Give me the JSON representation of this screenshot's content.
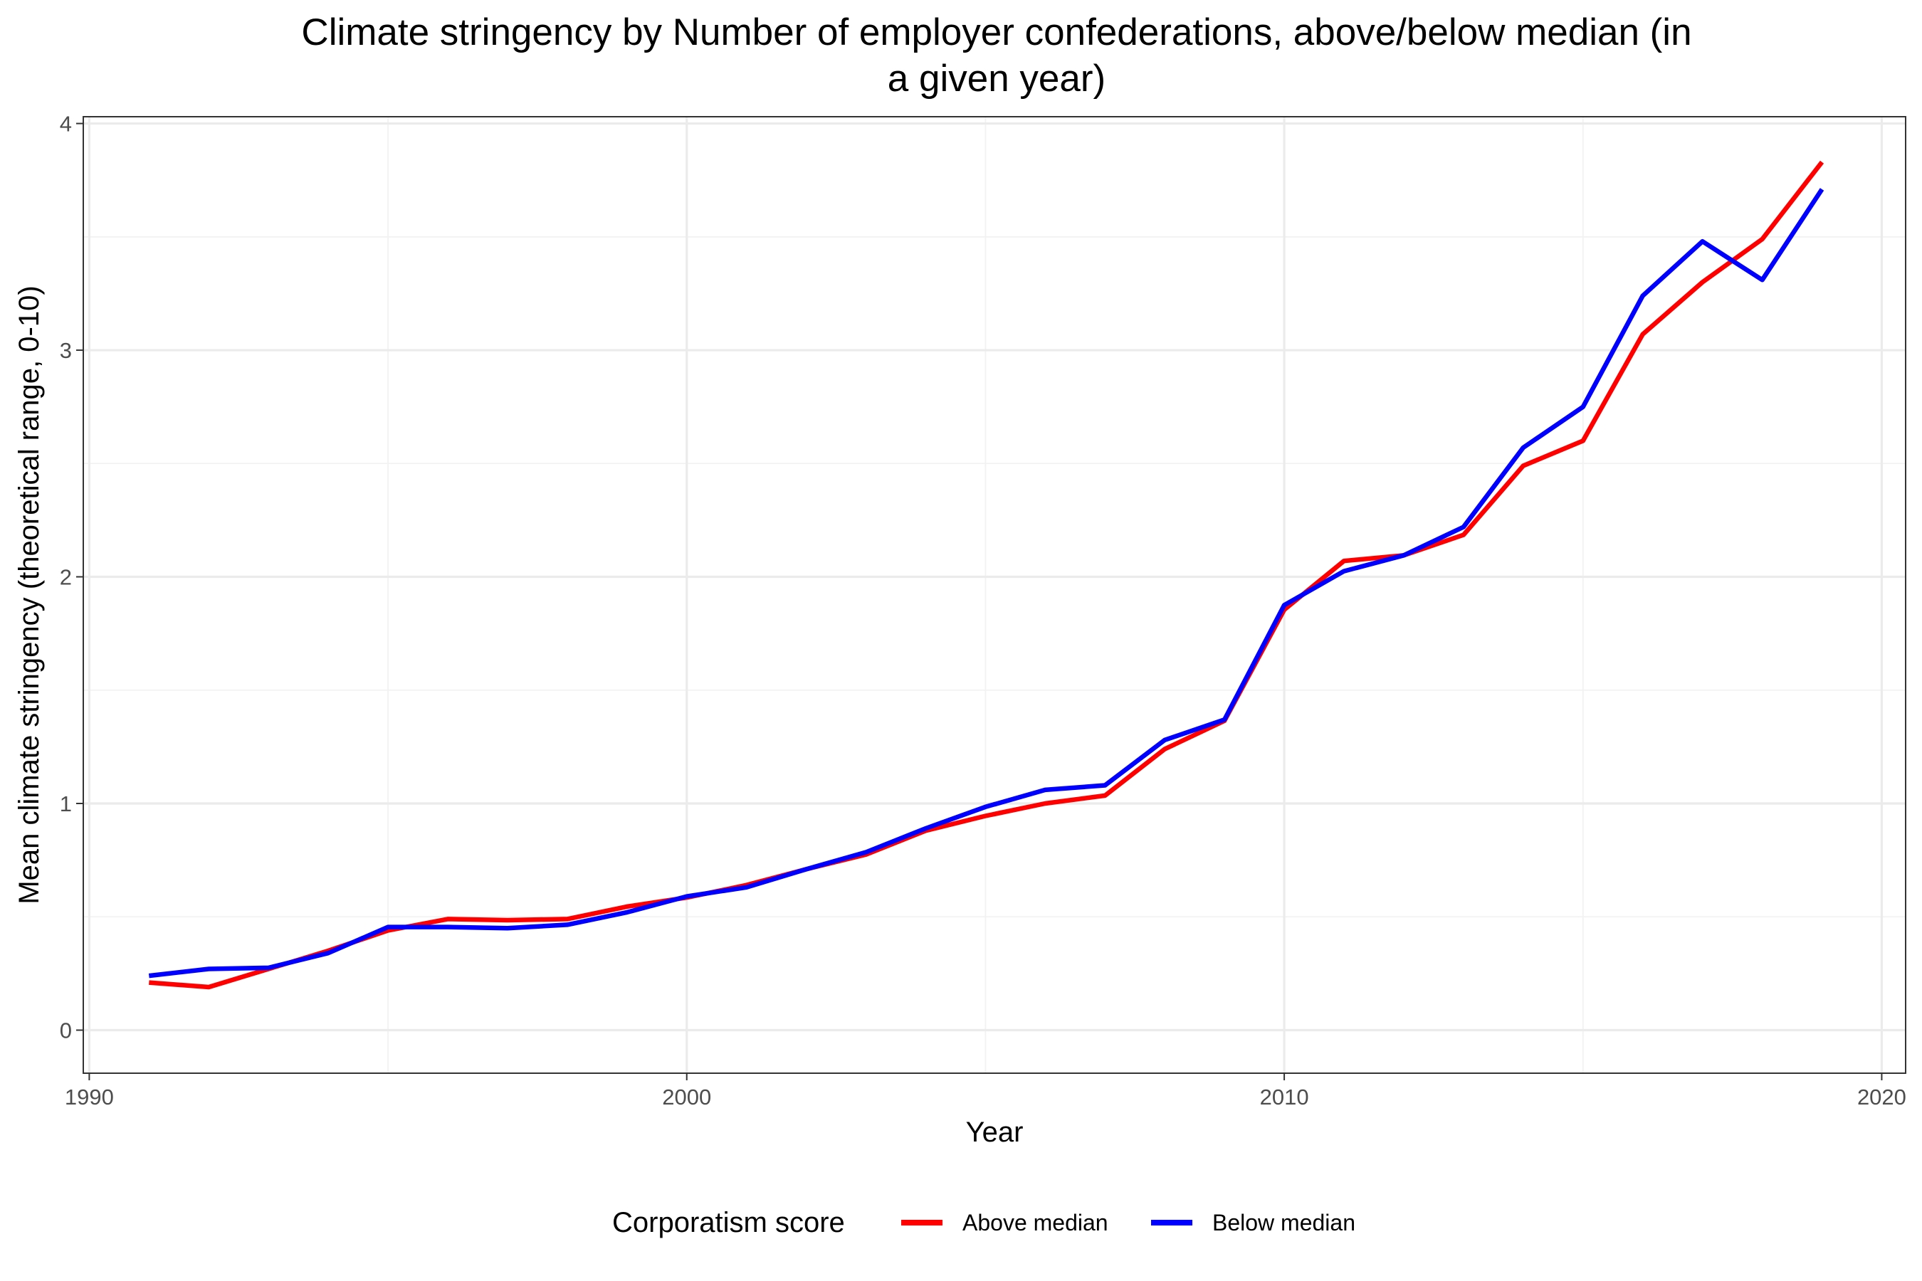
{
  "chart_data": {
    "type": "line",
    "title_lines": [
      "Climate stringency by Number of employer confederations, above/below median (in",
      "a given year)"
    ],
    "xlabel": "Year",
    "ylabel": "Mean climate stringency (theoretical range, 0-10)",
    "xlim": [
      1989.9,
      2020.4
    ],
    "ylim": [
      -0.19,
      4.03
    ],
    "x_ticks": [
      1990,
      2000,
      2010,
      2020
    ],
    "x_tick_labels": [
      "1990",
      "2000",
      "2010",
      "2020"
    ],
    "y_ticks": [
      0,
      1,
      2,
      3,
      4
    ],
    "y_tick_labels": [
      "0",
      "1",
      "2",
      "3",
      "4"
    ],
    "x_minor_ticks": [
      1995,
      2005,
      2015
    ],
    "y_minor_ticks": [
      0.5,
      1.5,
      2.5,
      3.5
    ],
    "grid": true,
    "legend": {
      "title": "Corporatism score",
      "position": "bottom"
    },
    "x": [
      1991,
      1992,
      1993,
      1994,
      1995,
      1996,
      1997,
      1998,
      1999,
      2000,
      2001,
      2002,
      2003,
      2004,
      2005,
      2006,
      2007,
      2008,
      2009,
      2010,
      2011,
      2012,
      2013,
      2014,
      2015,
      2016,
      2017,
      2018,
      2019
    ],
    "series": [
      {
        "name": "Above median",
        "color": "#ff0000",
        "values": [
          0.21,
          0.19,
          0.27,
          0.35,
          0.44,
          0.49,
          0.485,
          0.49,
          0.545,
          0.585,
          0.64,
          0.71,
          0.775,
          0.88,
          0.945,
          1.0,
          1.035,
          1.24,
          1.365,
          1.855,
          2.07,
          2.095,
          2.185,
          2.49,
          2.6,
          3.07,
          3.3,
          3.49,
          3.83
        ]
      },
      {
        "name": "Below median",
        "color": "#0000ff",
        "values": [
          0.24,
          0.27,
          0.275,
          0.34,
          0.455,
          0.455,
          0.45,
          0.465,
          0.52,
          0.59,
          0.63,
          0.71,
          0.785,
          0.89,
          0.985,
          1.06,
          1.08,
          1.28,
          1.37,
          1.875,
          2.025,
          2.095,
          2.22,
          2.57,
          2.75,
          3.24,
          3.48,
          3.31,
          3.71
        ]
      }
    ]
  }
}
